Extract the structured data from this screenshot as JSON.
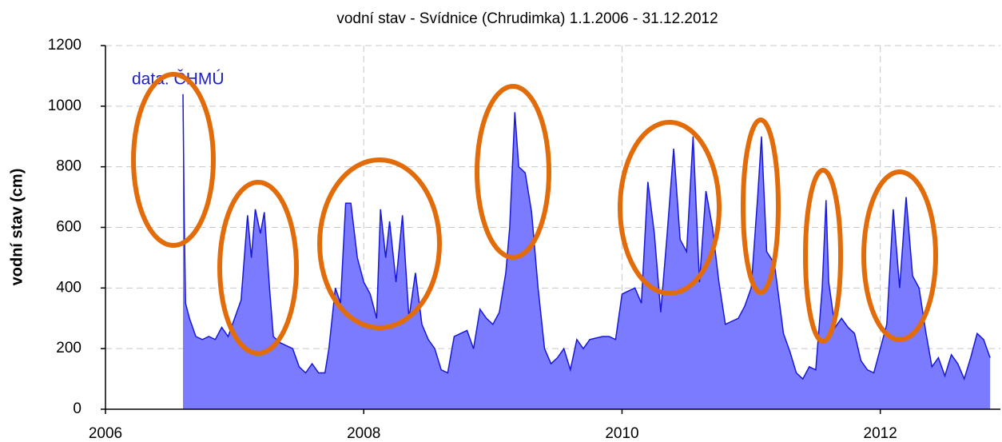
{
  "chart_data": {
    "type": "area",
    "title": "vodní stav - Svídnice (Chrudimka) 1.1.2006 - 31.12.2012",
    "y_label": "vodní stav (cm)",
    "annotation": "data: ČHMÚ",
    "fill_color": "#7b7bff",
    "line_color": "#1818d8",
    "xlim": [
      2006,
      2012.93
    ],
    "xticks": [
      2006,
      2008,
      2010,
      2012
    ],
    "ylim": [
      0,
      1200
    ],
    "yticks": [
      0,
      200,
      400,
      600,
      800,
      1000,
      1200
    ],
    "grid": true,
    "x": [
      2006.6,
      2006.61,
      2006.62,
      2006.65,
      2006.7,
      2006.75,
      2006.8,
      2006.85,
      2006.9,
      2006.95,
      2007.0,
      2007.05,
      2007.1,
      2007.13,
      2007.16,
      2007.2,
      2007.23,
      2007.27,
      2007.3,
      2007.35,
      2007.4,
      2007.45,
      2007.5,
      2007.55,
      2007.6,
      2007.65,
      2007.7,
      2007.73,
      2007.78,
      2007.82,
      2007.86,
      2007.9,
      2007.95,
      2008.0,
      2008.05,
      2008.1,
      2008.13,
      2008.17,
      2008.2,
      2008.25,
      2008.3,
      2008.35,
      2008.4,
      2008.45,
      2008.5,
      2008.55,
      2008.6,
      2008.65,
      2008.7,
      2008.75,
      2008.8,
      2008.85,
      2008.9,
      2008.95,
      2009.0,
      2009.05,
      2009.1,
      2009.13,
      2009.17,
      2009.2,
      2009.25,
      2009.3,
      2009.35,
      2009.4,
      2009.45,
      2009.5,
      2009.55,
      2009.6,
      2009.65,
      2009.7,
      2009.75,
      2009.8,
      2009.85,
      2009.9,
      2009.95,
      2010.0,
      2010.05,
      2010.1,
      2010.15,
      2010.2,
      2010.25,
      2010.3,
      2010.35,
      2010.4,
      2010.45,
      2010.5,
      2010.55,
      2010.6,
      2010.65,
      2010.7,
      2010.75,
      2010.8,
      2010.85,
      2010.9,
      2010.95,
      2011.0,
      2011.05,
      2011.08,
      2011.12,
      2011.18,
      2011.25,
      2011.3,
      2011.35,
      2011.4,
      2011.45,
      2011.5,
      2011.55,
      2011.58,
      2011.6,
      2011.65,
      2011.7,
      2011.75,
      2011.8,
      2011.85,
      2011.9,
      2011.95,
      2012.0,
      2012.05,
      2012.1,
      2012.15,
      2012.2,
      2012.25,
      2012.3,
      2012.35,
      2012.4,
      2012.45,
      2012.5,
      2012.55,
      2012.6,
      2012.65,
      2012.7,
      2012.75,
      2012.8,
      2012.85
    ],
    "values": [
      1040,
      620,
      350,
      300,
      240,
      230,
      240,
      230,
      270,
      240,
      300,
      360,
      640,
      500,
      660,
      580,
      650,
      400,
      240,
      220,
      210,
      200,
      140,
      120,
      150,
      120,
      120,
      200,
      400,
      350,
      680,
      680,
      500,
      420,
      380,
      300,
      660,
      500,
      620,
      420,
      640,
      300,
      450,
      280,
      230,
      200,
      130,
      120,
      240,
      250,
      260,
      200,
      330,
      300,
      280,
      320,
      450,
      600,
      980,
      800,
      780,
      650,
      400,
      200,
      150,
      170,
      200,
      130,
      230,
      200,
      230,
      235,
      240,
      240,
      230,
      380,
      390,
      400,
      350,
      750,
      580,
      320,
      580,
      860,
      560,
      520,
      900,
      420,
      720,
      600,
      420,
      280,
      290,
      300,
      340,
      400,
      700,
      900,
      520,
      480,
      250,
      190,
      120,
      100,
      140,
      130,
      400,
      690,
      420,
      270,
      300,
      270,
      250,
      160,
      130,
      120,
      200,
      280,
      660,
      400,
      700,
      440,
      400,
      260,
      140,
      170,
      110,
      180,
      150,
      100,
      170,
      250,
      230,
      170
    ]
  }
}
